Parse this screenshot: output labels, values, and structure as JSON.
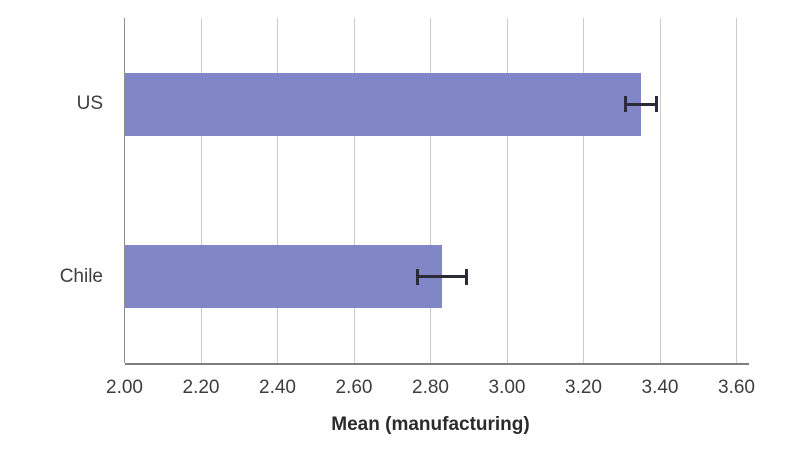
{
  "chart_data": {
    "type": "bar",
    "orientation": "horizontal",
    "title": "",
    "xlabel": "Mean (manufacturing)",
    "ylabel": "",
    "categories": [
      "US",
      "Chile"
    ],
    "series": [
      {
        "name": "Mean (manufacturing)",
        "values": [
          3.35,
          2.83
        ],
        "errors": [
          0.04,
          0.065
        ]
      }
    ],
    "xlim": [
      2.0,
      3.6
    ],
    "xtick_step": 0.2,
    "xtick_labels": [
      "2.00",
      "2.20",
      "2.40",
      "2.60",
      "2.80",
      "3.00",
      "3.20",
      "3.40",
      "3.60"
    ],
    "grid": "vertical-gridlines-on",
    "legend": "none",
    "colors": {
      "bar_fill": "#8186c6",
      "error_bar": "#2b2c38",
      "gridline": "#cbcbcb",
      "left_axis_line": "#8e8e8e",
      "bottom_axis_line": "#7d7d7d",
      "text": "#3d3d3d",
      "background": "#ffffff"
    }
  }
}
